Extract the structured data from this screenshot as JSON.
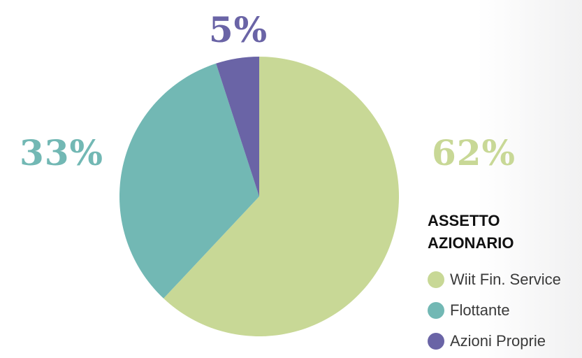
{
  "chart_data": {
    "type": "pie",
    "title": "ASSETTO AZIONARIO",
    "title_lines": [
      "ASSETTO",
      "AZIONARIO"
    ],
    "categories": [
      "Wiit Fin. Service",
      "Flottante",
      "Azioni Proprie"
    ],
    "values": [
      62,
      33,
      5
    ],
    "value_labels": [
      "62%",
      "33%",
      "5%"
    ],
    "colors": [
      "#c8d896",
      "#72b8b4",
      "#6a64a6"
    ],
    "legend_position": "right"
  }
}
